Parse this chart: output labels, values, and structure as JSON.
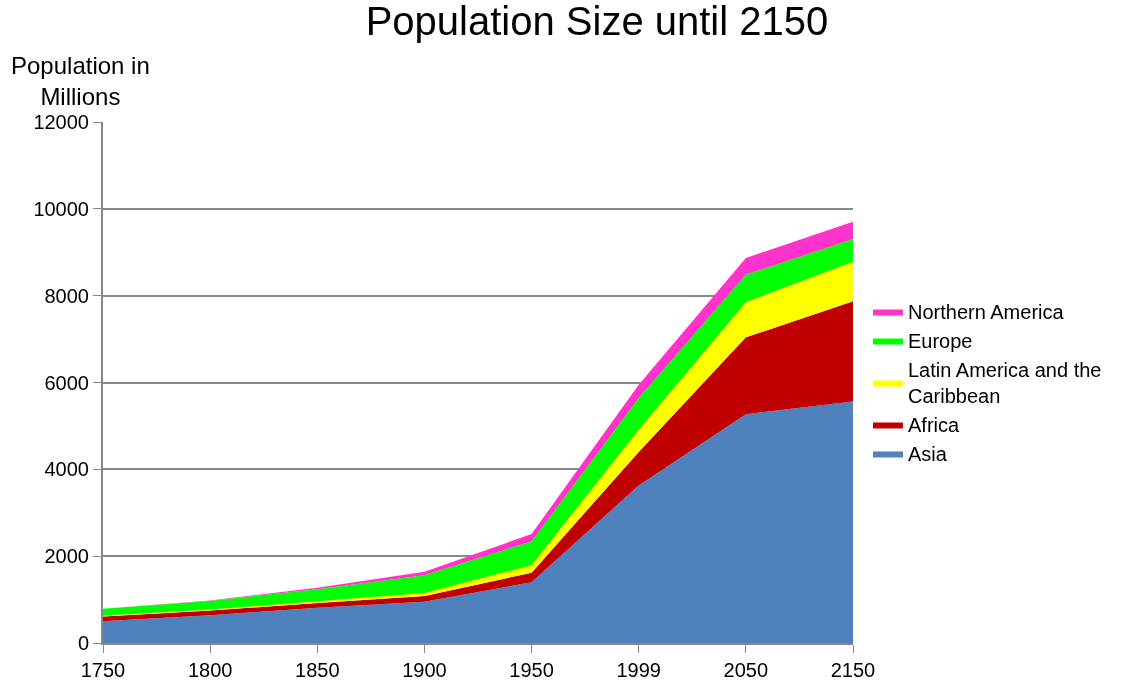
{
  "chart_data": {
    "type": "area",
    "stacked": true,
    "title": "Population Size until 2150",
    "ylabel": "Population in Millions",
    "categories": [
      "1750",
      "1800",
      "1850",
      "1900",
      "1950",
      "1999",
      "2050",
      "2150"
    ],
    "series": [
      {
        "name": "Asia",
        "color": "#4f81bd",
        "values": [
          500,
          640,
          810,
          950,
          1400,
          3630,
          5270,
          5560
        ]
      },
      {
        "name": "Africa",
        "color": "#c00000",
        "values": [
          110,
          110,
          110,
          130,
          220,
          770,
          1770,
          2310
        ]
      },
      {
        "name": "Latin America and the Caribbean",
        "color": "#ffff00",
        "values": [
          20,
          20,
          40,
          70,
          170,
          510,
          810,
          910
        ]
      },
      {
        "name": "Europe",
        "color": "#00ff00",
        "values": [
          160,
          200,
          280,
          410,
          550,
          730,
          630,
          520
        ]
      },
      {
        "name": "Northern America",
        "color": "#ff33cc",
        "values": [
          0,
          10,
          30,
          80,
          170,
          310,
          390,
          400
        ]
      }
    ],
    "ylim": [
      0,
      12000
    ],
    "yticks": [
      0,
      2000,
      4000,
      6000,
      8000,
      10000,
      12000
    ],
    "grid": "y",
    "legend": "right"
  }
}
